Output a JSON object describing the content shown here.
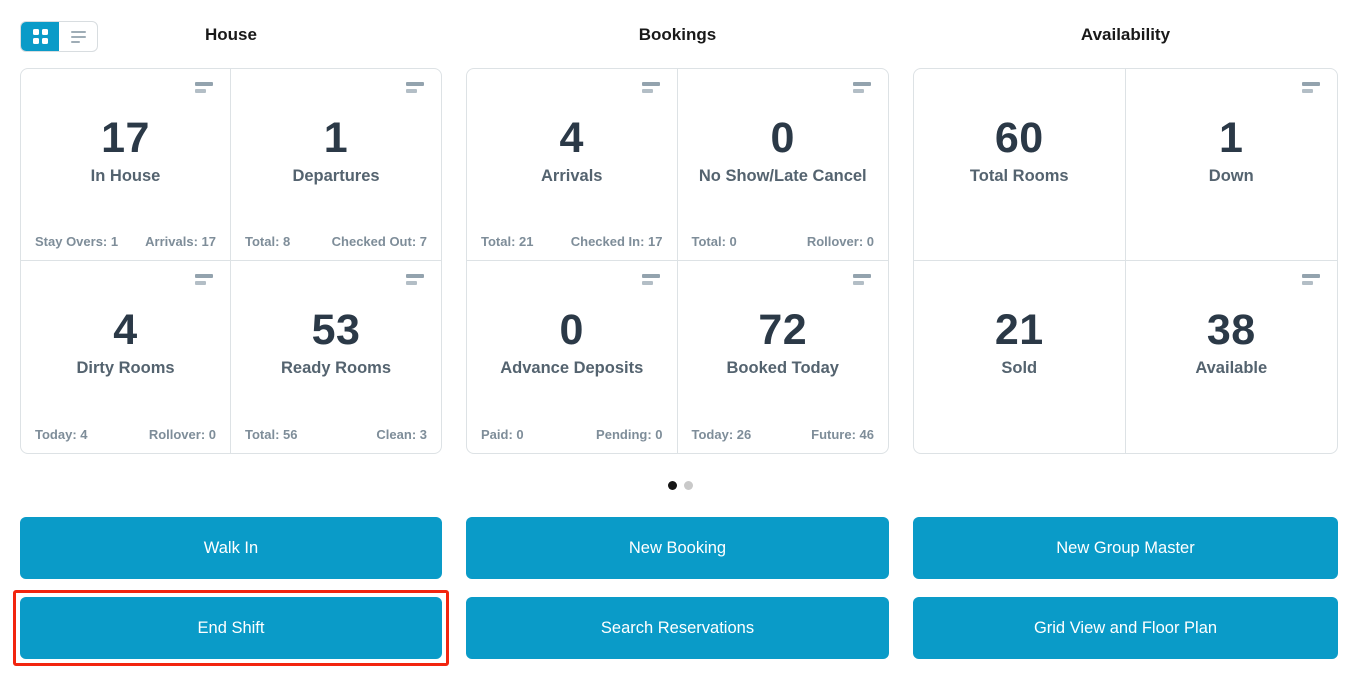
{
  "colors": {
    "accent": "#0a9bc8",
    "highlight_outline": "#f2250f"
  },
  "view_toggle": {
    "active_view": "grid"
  },
  "sections": [
    {
      "title": "House",
      "cards": [
        {
          "number": "17",
          "label": "In House",
          "footer_left": "Stay Overs: 1",
          "footer_right": "Arrivals: 17"
        },
        {
          "number": "1",
          "label": "Departures",
          "footer_left": "Total: 8",
          "footer_right": "Checked Out: 7"
        },
        {
          "number": "4",
          "label": "Dirty Rooms",
          "footer_left": "Today: 4",
          "footer_right": "Rollover: 0"
        },
        {
          "number": "53",
          "label": "Ready Rooms",
          "footer_left": "Total: 56",
          "footer_right": "Clean: 3"
        }
      ]
    },
    {
      "title": "Bookings",
      "cards": [
        {
          "number": "4",
          "label": "Arrivals",
          "footer_left": "Total: 21",
          "footer_right": "Checked In: 17"
        },
        {
          "number": "0",
          "label": "No Show/Late Cancel",
          "footer_left": "Total: 0",
          "footer_right": "Rollover: 0"
        },
        {
          "number": "0",
          "label": "Advance Deposits",
          "footer_left": "Paid: 0",
          "footer_right": "Pending: 0"
        },
        {
          "number": "72",
          "label": "Booked Today",
          "footer_left": "Today: 26",
          "footer_right": "Future: 46"
        }
      ]
    },
    {
      "title": "Availability",
      "cards": [
        {
          "number": "60",
          "label": "Total Rooms"
        },
        {
          "number": "1",
          "label": "Down"
        },
        {
          "number": "21",
          "label": "Sold"
        },
        {
          "number": "38",
          "label": "Available"
        }
      ]
    }
  ],
  "pagination": {
    "dot_count": 2,
    "active_index": 0
  },
  "actions": {
    "walk_in": "Walk In",
    "new_booking": "New Booking",
    "new_group_master": "New Group Master",
    "end_shift": "End Shift",
    "search_reservations": "Search Reservations",
    "grid_view_floor_plan": "Grid View and Floor Plan"
  }
}
